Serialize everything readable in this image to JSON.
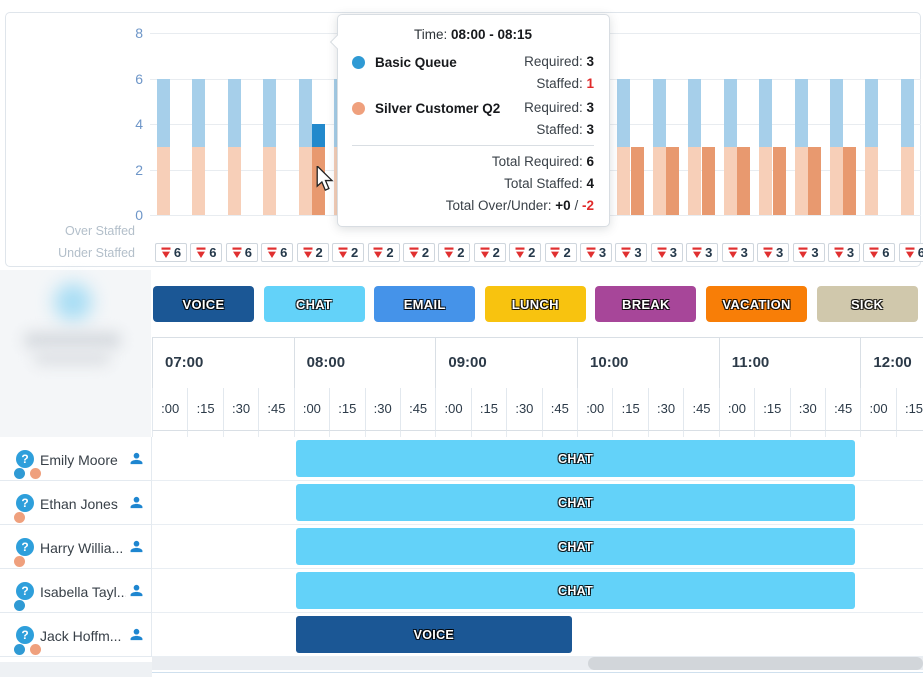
{
  "colors": {
    "required_basic": "#a6cfea",
    "required_silver": "#f7cfb8",
    "staffed_basic": "#2289cc",
    "staffed_silver": "#e8996f",
    "queue_basic_dot": "#2f9ad4",
    "queue_silver_dot": "#efa07d",
    "under_arrow_red": "#e03030",
    "voice": "#1b5795",
    "chat": "#63d2f9",
    "email": "#4593e9",
    "lunch": "#f8c30f",
    "break": "#a74699",
    "vacation": "#f87e07",
    "sick": "#d0c8ac"
  },
  "chart_data": {
    "type": "bar",
    "stacked": true,
    "ylim": [
      0,
      8
    ],
    "yticks": [
      0,
      2,
      4,
      6,
      8
    ],
    "slot_times": [
      "07:00",
      "07:15",
      "07:30",
      "07:45",
      "08:00",
      "08:15",
      "08:30",
      "08:45",
      "09:00",
      "09:15",
      "09:30",
      "09:45",
      "10:00",
      "10:15",
      "10:30",
      "10:45",
      "11:00",
      "11:15",
      "11:30",
      "11:45",
      "12:00",
      "12:15"
    ],
    "series": [
      {
        "name": "Silver Customer Q2 Required",
        "color_key": "required_silver",
        "values": [
          3,
          3,
          3,
          3,
          3,
          3,
          3,
          3,
          3,
          3,
          3,
          3,
          3,
          3,
          3,
          3,
          3,
          3,
          3,
          3,
          3,
          3
        ]
      },
      {
        "name": "Basic Queue Required",
        "color_key": "required_basic",
        "values": [
          3,
          3,
          3,
          3,
          3,
          3,
          3,
          3,
          3,
          3,
          3,
          3,
          3,
          3,
          3,
          3,
          3,
          3,
          3,
          3,
          3,
          3
        ]
      },
      {
        "name": "Silver Customer Q2 Staffed",
        "color_key": "staffed_silver",
        "values": [
          0,
          0,
          0,
          0,
          3,
          3,
          3,
          3,
          3,
          3,
          3,
          3,
          3,
          3,
          3,
          3,
          3,
          3,
          3,
          3,
          0,
          0
        ]
      },
      {
        "name": "Basic Queue Staffed",
        "color_key": "staffed_basic",
        "values": [
          0,
          0,
          0,
          0,
          1,
          1,
          1,
          1,
          1,
          1,
          1,
          1,
          0,
          0,
          0,
          0,
          0,
          0,
          0,
          0,
          0,
          0
        ]
      }
    ],
    "over_staffed_label": "Over Staffed",
    "under_staffed_label": "Under Staffed",
    "over_staffed_values": [],
    "under_staffed_values": [
      6,
      6,
      6,
      6,
      2,
      2,
      2,
      2,
      2,
      2,
      2,
      2,
      3,
      3,
      3,
      3,
      3,
      3,
      3,
      3,
      6,
      6
    ]
  },
  "tooltip": {
    "time_label": "Time:",
    "time_value": "08:00 - 08:15",
    "required_label": "Required:",
    "staffed_label": "Staffed:",
    "queues": [
      {
        "name": "Basic Queue",
        "dot_key": "queue_basic_dot",
        "required": "3",
        "staffed": "1",
        "staffed_red": true
      },
      {
        "name": "Silver Customer Q2",
        "dot_key": "queue_silver_dot",
        "required": "3",
        "staffed": "3",
        "staffed_red": false
      }
    ],
    "total_required_label": "Total Required:",
    "total_required": "6",
    "total_staffed_label": "Total Staffed:",
    "total_staffed": "4",
    "total_over_under_label": "Total Over/Under:",
    "over_value": "+0",
    "slash": "/",
    "under_value": "-2"
  },
  "legend": [
    {
      "label": "VOICE",
      "color_key": "voice"
    },
    {
      "label": "CHAT",
      "color_key": "chat"
    },
    {
      "label": "EMAIL",
      "color_key": "email"
    },
    {
      "label": "LUNCH",
      "color_key": "lunch"
    },
    {
      "label": "BREAK",
      "color_key": "break"
    },
    {
      "label": "VACATION",
      "color_key": "vacation"
    },
    {
      "label": "SICK",
      "color_key": "sick"
    }
  ],
  "schedule": {
    "hours": [
      "07:00",
      "08:00",
      "09:00",
      "10:00",
      "11:00",
      "12:00"
    ],
    "quarters": [
      ":00",
      ":15",
      ":30",
      ":45"
    ],
    "agents": [
      {
        "name": "Emily Moore",
        "queue_dots": [
          "basic",
          "silver"
        ],
        "shifts": [
          {
            "activity": "CHAT",
            "color_key": "chat",
            "start": "08:00",
            "end": "12:00"
          }
        ]
      },
      {
        "name": "Ethan Jones",
        "queue_dots": [
          "silver"
        ],
        "shifts": [
          {
            "activity": "CHAT",
            "color_key": "chat",
            "start": "08:00",
            "end": "12:00"
          }
        ]
      },
      {
        "name": "Harry Willia...",
        "queue_dots": [
          "silver"
        ],
        "shifts": [
          {
            "activity": "CHAT",
            "color_key": "chat",
            "start": "08:00",
            "end": "12:00"
          }
        ]
      },
      {
        "name": "Isabella Tayl...",
        "queue_dots": [
          "basic"
        ],
        "shifts": [
          {
            "activity": "CHAT",
            "color_key": "chat",
            "start": "08:00",
            "end": "12:00"
          }
        ]
      },
      {
        "name": "Jack Hoffm...",
        "queue_dots": [
          "basic",
          "silver"
        ],
        "shifts": [
          {
            "activity": "VOICE",
            "color_key": "voice",
            "start": "08:00",
            "end": "10:00"
          }
        ]
      }
    ]
  }
}
